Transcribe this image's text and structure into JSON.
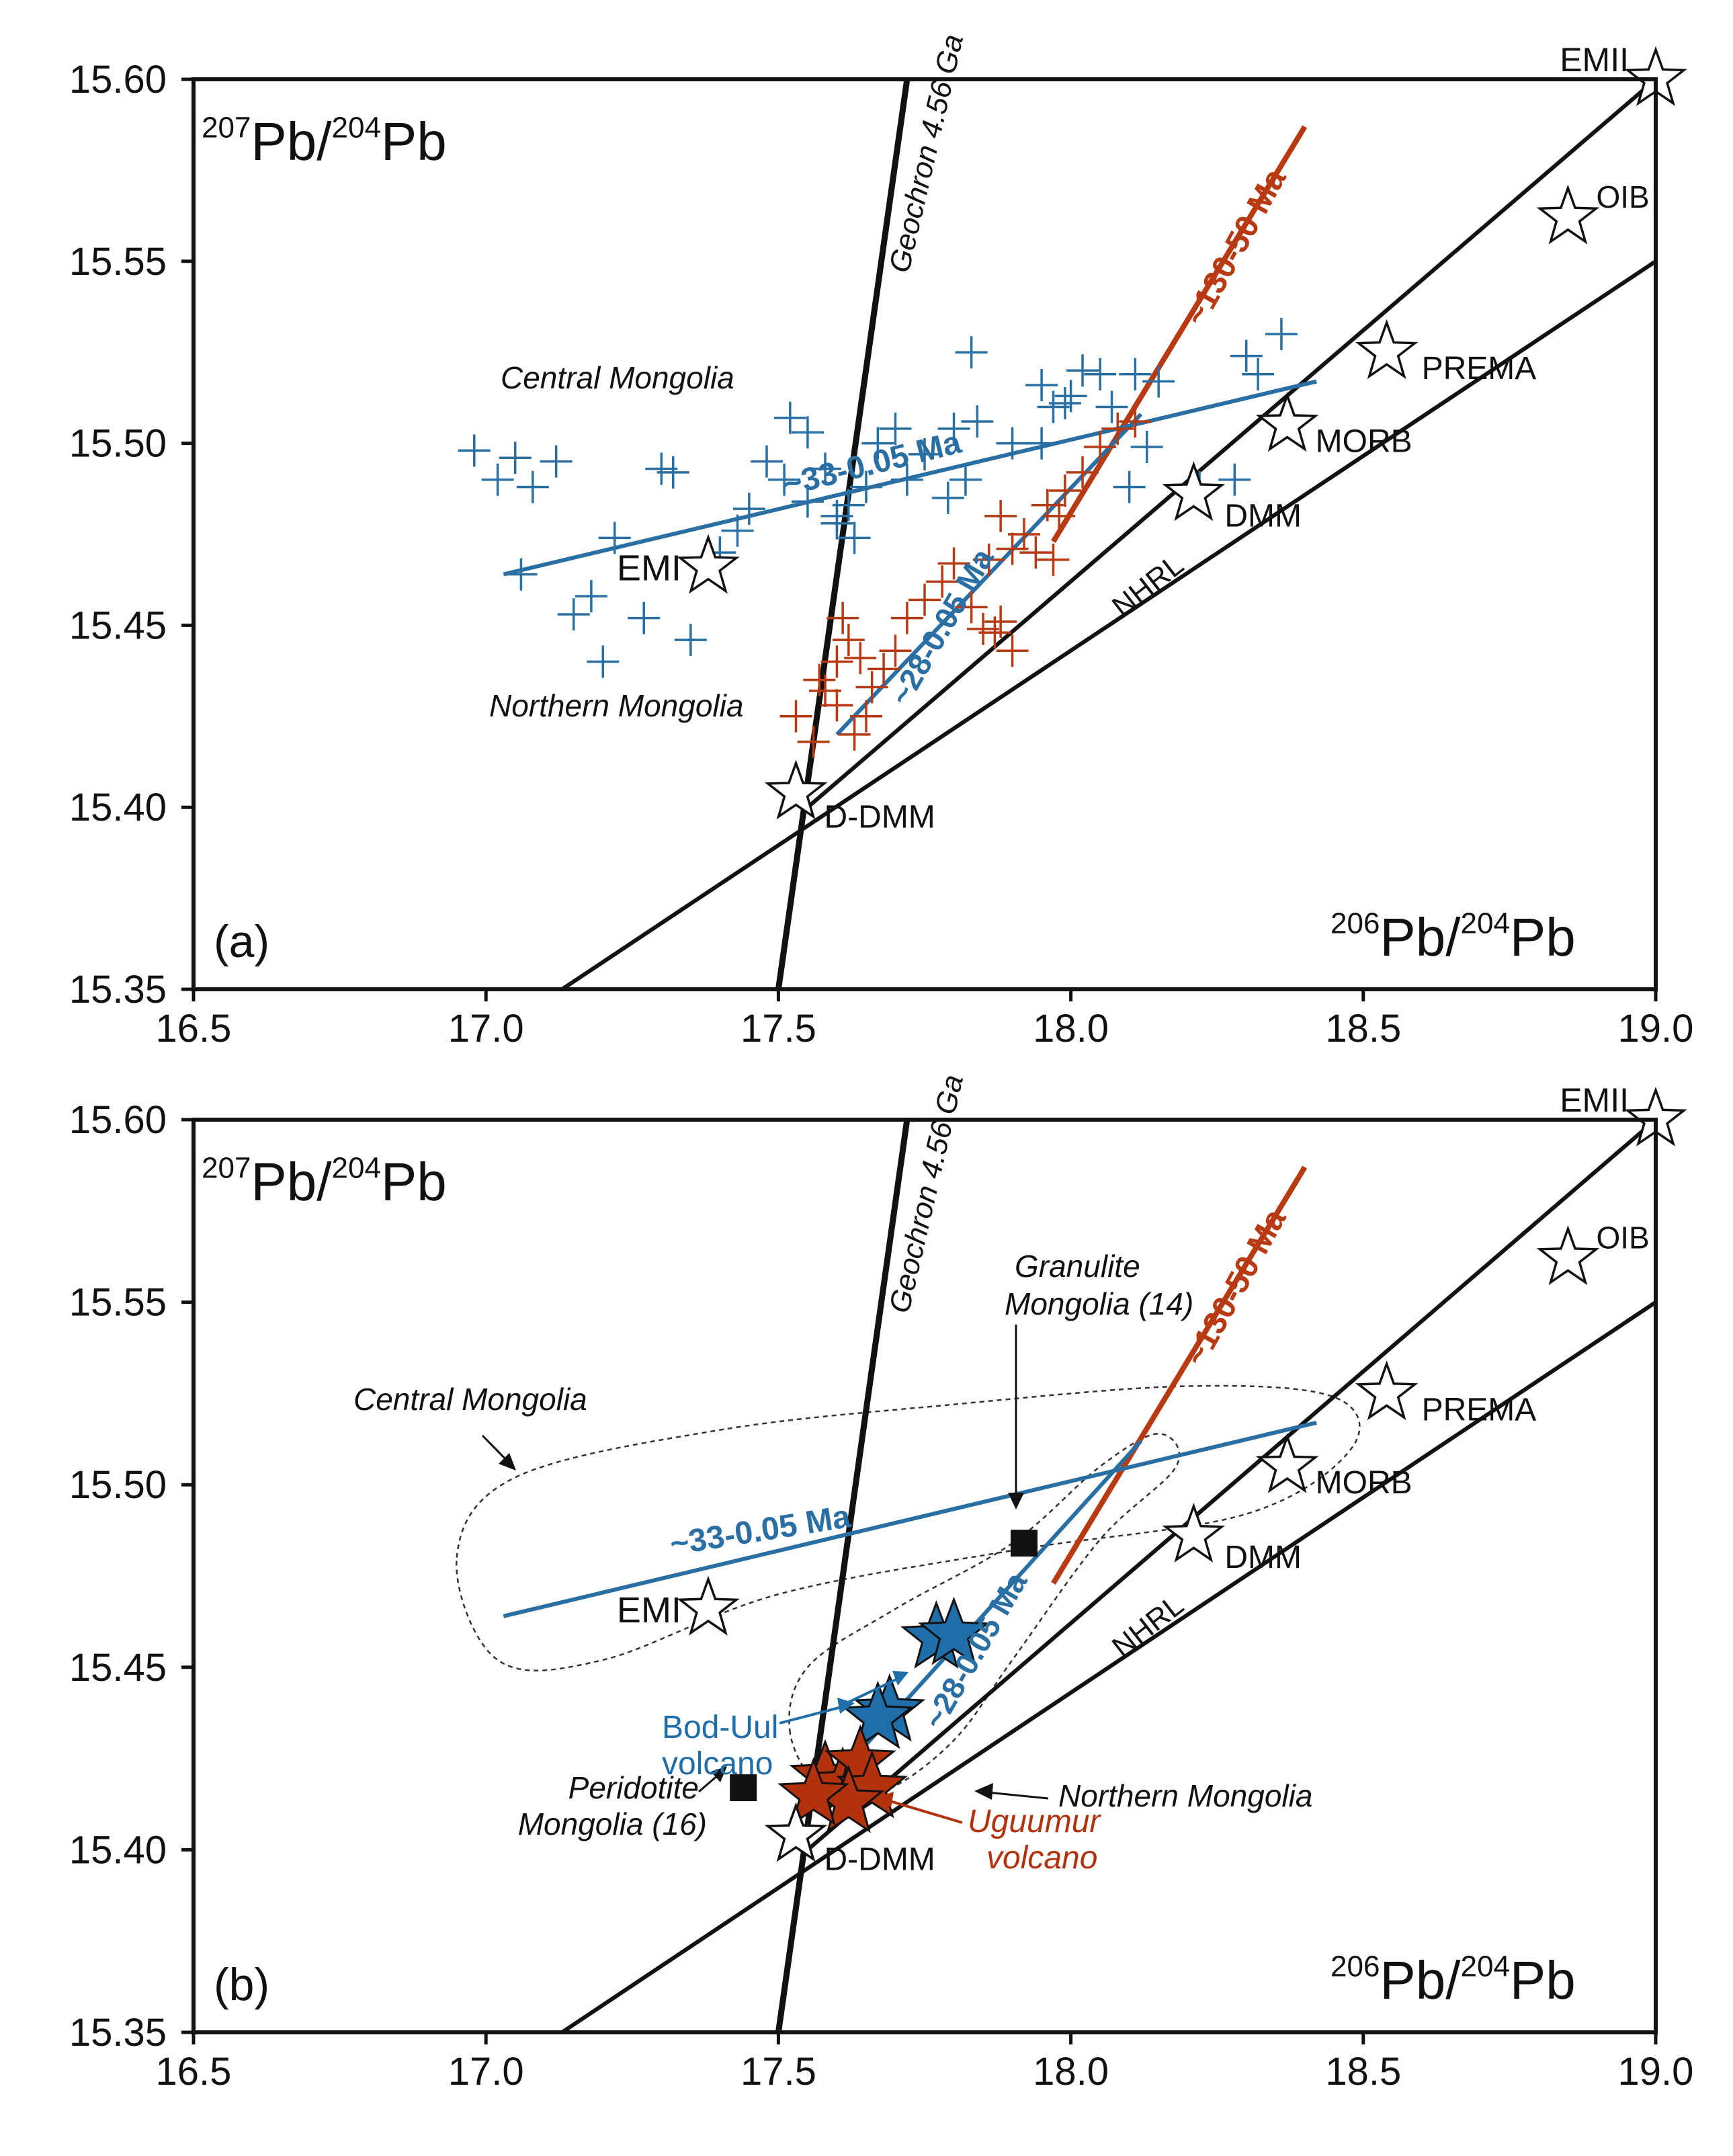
{
  "figure": {
    "x_ticks": [
      "16.5",
      "17.0",
      "17.5",
      "18.0",
      "18.5",
      "19.0"
    ],
    "y_ticks": [
      "15.35",
      "15.40",
      "15.45",
      "15.50",
      "15.55",
      "15.60"
    ]
  },
  "colors": {
    "central": "#2a6fa3",
    "northern": "#b73a12",
    "axis": "#111111",
    "sample_blue": "#1f6ea9",
    "sample_red": "#b3320e"
  },
  "chart_data": [
    {
      "type": "scatter",
      "panel_label": "(a)",
      "ylabel_parts": {
        "sup1": "207",
        "base1": "Pb/",
        "sup2": "204",
        "base2": "Pb"
      },
      "xlabel_parts": {
        "sup1": "206",
        "base1": "Pb/",
        "sup2": "204",
        "base2": "Pb"
      },
      "xlim": [
        16.5,
        19.0
      ],
      "ylim": [
        15.35,
        15.6
      ],
      "reference_lines": [
        {
          "name": "Geochron 4.56 Ga",
          "label": "Geochron 4.56 Ga",
          "from": [
            17.5,
            15.35
          ],
          "to": [
            17.72,
            15.6
          ],
          "color": "#111111"
        },
        {
          "name": "NHRL",
          "label": "NHRL",
          "from": [
            17.13,
            15.35
          ],
          "to": [
            19.0,
            15.55
          ],
          "color": "#111111"
        },
        {
          "name": "mantle array",
          "label": "",
          "from": [
            17.55,
            15.4
          ],
          "to": [
            19.0,
            15.6
          ],
          "color": "#111111"
        },
        {
          "name": "~130-50 Ma",
          "label": "~130-50 Ma",
          "from": [
            17.97,
            15.473
          ],
          "to": [
            18.4,
            15.587
          ],
          "color": "#b73a12"
        },
        {
          "name": "~33-0.05 Ma",
          "label": "~33-0.05 Ma",
          "from": [
            17.03,
            15.464
          ],
          "to": [
            18.42,
            15.517
          ],
          "color": "#2a6fa3"
        },
        {
          "name": "~28-0.05 Ma",
          "label": "~28-0.05 Ma",
          "from": [
            17.6,
            15.42
          ],
          "to": [
            18.12,
            15.508
          ],
          "color": "#2a6fa3"
        }
      ],
      "end_members": [
        {
          "name": "EMII",
          "x": 19.0,
          "y": 15.6
        },
        {
          "name": "OIB",
          "x": 18.85,
          "y": 15.562
        },
        {
          "name": "PREMA",
          "x": 18.54,
          "y": 15.525
        },
        {
          "name": "MORB",
          "x": 18.37,
          "y": 15.505
        },
        {
          "name": "DMM",
          "x": 18.21,
          "y": 15.486
        },
        {
          "name": "EMI",
          "x": 17.38,
          "y": 15.466
        },
        {
          "name": "D-DMM",
          "x": 17.53,
          "y": 15.404
        }
      ],
      "annotations": [
        "Central Mongolia",
        "Northern Mongolia"
      ],
      "series": [
        {
          "name": "Central Mongolia",
          "marker": "plus",
          "color": "#2a6fa3",
          "points": [
            [
              16.98,
              15.498
            ],
            [
              17.05,
              15.496
            ],
            [
              17.02,
              15.49
            ],
            [
              17.08,
              15.488
            ],
            [
              17.12,
              15.495
            ],
            [
              17.06,
              15.464
            ],
            [
              17.22,
              15.474
            ],
            [
              17.18,
              15.458
            ],
            [
              17.15,
              15.453
            ],
            [
              17.2,
              15.44
            ],
            [
              17.27,
              15.452
            ],
            [
              17.35,
              15.446
            ],
            [
              17.3,
              15.493
            ],
            [
              17.32,
              15.492
            ],
            [
              17.4,
              15.47
            ],
            [
              17.43,
              15.476
            ],
            [
              17.45,
              15.482
            ],
            [
              17.48,
              15.495
            ],
            [
              17.51,
              15.49
            ],
            [
              17.52,
              15.507
            ],
            [
              17.55,
              15.503
            ],
            [
              17.58,
              15.493
            ],
            [
              17.55,
              15.484
            ],
            [
              17.6,
              15.478
            ],
            [
              17.62,
              15.483
            ],
            [
              17.63,
              15.474
            ],
            [
              17.65,
              15.488
            ],
            [
              17.67,
              15.5
            ],
            [
              17.72,
              15.49
            ],
            [
              17.7,
              15.504
            ],
            [
              17.75,
              15.497
            ],
            [
              17.8,
              15.504
            ],
            [
              17.79,
              15.485
            ],
            [
              17.82,
              15.49
            ],
            [
              17.84,
              15.506
            ],
            [
              17.83,
              15.525
            ],
            [
              17.9,
              15.5
            ],
            [
              17.95,
              15.516
            ],
            [
              17.97,
              15.51
            ],
            [
              17.99,
              15.511
            ],
            [
              18.0,
              15.513
            ],
            [
              18.02,
              15.52
            ],
            [
              18.05,
              15.519
            ],
            [
              18.07,
              15.51
            ],
            [
              18.11,
              15.519
            ],
            [
              18.13,
              15.499
            ],
            [
              18.15,
              15.517
            ],
            [
              18.1,
              15.488
            ],
            [
              18.22,
              15.488
            ],
            [
              18.28,
              15.49
            ],
            [
              18.32,
              15.519
            ],
            [
              18.36,
              15.53
            ],
            [
              18.3,
              15.524
            ],
            [
              17.95,
              15.5
            ],
            [
              17.6,
              15.48
            ]
          ]
        },
        {
          "name": "Northern Mongolia",
          "marker": "plus",
          "color": "#b73a12",
          "points": [
            [
              17.53,
              15.425
            ],
            [
              17.56,
              15.418
            ],
            [
              17.58,
              15.432
            ],
            [
              17.6,
              15.428
            ],
            [
              17.62,
              15.446
            ],
            [
              17.61,
              15.452
            ],
            [
              17.64,
              15.441
            ],
            [
              17.66,
              15.433
            ],
            [
              17.63,
              15.42
            ],
            [
              17.65,
              15.425
            ],
            [
              17.68,
              15.438
            ],
            [
              17.7,
              15.443
            ],
            [
              17.72,
              15.452
            ],
            [
              17.75,
              15.457
            ],
            [
              17.78,
              15.462
            ],
            [
              17.8,
              15.467
            ],
            [
              17.83,
              15.455
            ],
            [
              17.85,
              15.449
            ],
            [
              17.87,
              15.448
            ],
            [
              17.88,
              15.451
            ],
            [
              17.9,
              15.443
            ],
            [
              17.86,
              15.468
            ],
            [
              17.88,
              15.48
            ],
            [
              17.9,
              15.471
            ],
            [
              17.92,
              15.475
            ],
            [
              17.94,
              15.47
            ],
            [
              17.96,
              15.483
            ],
            [
              17.98,
              15.48
            ],
            [
              17.97,
              15.468
            ],
            [
              17.99,
              15.487
            ],
            [
              18.02,
              15.492
            ],
            [
              18.05,
              15.499
            ],
            [
              18.08,
              15.504
            ],
            [
              18.11,
              15.506
            ],
            [
              17.6,
              15.44
            ],
            [
              17.57,
              15.435
            ]
          ]
        }
      ]
    },
    {
      "type": "scatter",
      "panel_label": "(b)",
      "ylabel_parts": {
        "sup1": "207",
        "base1": "Pb/",
        "sup2": "204",
        "base2": "Pb"
      },
      "xlabel_parts": {
        "sup1": "206",
        "base1": "Pb/",
        "sup2": "204",
        "base2": "Pb"
      },
      "xlim": [
        16.5,
        19.0
      ],
      "ylim": [
        15.35,
        15.6
      ],
      "reference_lines": [
        {
          "name": "Geochron 4.56 Ga",
          "label": "Geochron 4.56 Ga",
          "from": [
            17.5,
            15.35
          ],
          "to": [
            17.72,
            15.6
          ],
          "color": "#111111"
        },
        {
          "name": "NHRL",
          "label": "NHRL",
          "from": [
            17.13,
            15.35
          ],
          "to": [
            19.0,
            15.55
          ],
          "color": "#111111"
        },
        {
          "name": "mantle array",
          "label": "",
          "from": [
            17.55,
            15.4
          ],
          "to": [
            19.0,
            15.6
          ],
          "color": "#111111"
        },
        {
          "name": "~130-50 Ma",
          "label": "~130-50 Ma",
          "from": [
            17.97,
            15.473
          ],
          "to": [
            18.4,
            15.587
          ],
          "color": "#b73a12"
        },
        {
          "name": "~33-0.05 Ma",
          "label": "~33-0.05 Ma",
          "from": [
            17.03,
            15.464
          ],
          "to": [
            18.42,
            15.517
          ],
          "color": "#2a6fa3"
        },
        {
          "name": "~28-0.05 Ma",
          "label": "~28-0.05 Ma",
          "from": [
            17.6,
            15.42
          ],
          "to": [
            18.12,
            15.512
          ],
          "color": "#2a6fa3"
        }
      ],
      "end_members": [
        {
          "name": "EMII",
          "x": 19.0,
          "y": 15.6
        },
        {
          "name": "OIB",
          "x": 18.85,
          "y": 15.562
        },
        {
          "name": "PREMA",
          "x": 18.54,
          "y": 15.525
        },
        {
          "name": "MORB",
          "x": 18.37,
          "y": 15.505
        },
        {
          "name": "DMM",
          "x": 18.21,
          "y": 15.486
        },
        {
          "name": "EMI",
          "x": 17.38,
          "y": 15.466
        },
        {
          "name": "D-DMM",
          "x": 17.53,
          "y": 15.404
        }
      ],
      "annotations": [
        "Central Mongolia",
        "Northern Mongolia",
        "Granulite",
        "Mongolia (14)",
        "Peridotite",
        "Mongolia (16)"
      ],
      "fields": [
        {
          "name": "Central Mongolia",
          "outline": [
            [
              16.95,
              15.48
            ],
            [
              17.05,
              15.502
            ],
            [
              17.4,
              15.515
            ],
            [
              17.8,
              15.522
            ],
            [
              18.2,
              15.527
            ],
            [
              18.45,
              15.524
            ],
            [
              18.48,
              15.51
            ],
            [
              18.3,
              15.492
            ],
            [
              17.9,
              15.482
            ],
            [
              17.5,
              15.47
            ],
            [
              17.2,
              15.452
            ],
            [
              17.02,
              15.452
            ]
          ]
        },
        {
          "name": "Northern Mongolia",
          "outline": [
            [
              17.52,
              15.432
            ],
            [
              17.55,
              15.45
            ],
            [
              17.7,
              15.466
            ],
            [
              17.9,
              15.484
            ],
            [
              18.05,
              15.505
            ],
            [
              18.15,
              15.514
            ],
            [
              18.18,
              15.505
            ],
            [
              18.05,
              15.485
            ],
            [
              17.9,
              15.452
            ],
            [
              17.8,
              15.43
            ],
            [
              17.68,
              15.416
            ],
            [
              17.58,
              15.416
            ]
          ]
        }
      ],
      "samples": [
        {
          "name": "Granulite Mongolia (14)",
          "marker": "square",
          "x": 17.92,
          "y": 15.484,
          "color": "#111111"
        },
        {
          "name": "Peridotite Mongolia (16)",
          "marker": "square",
          "x": 17.44,
          "y": 15.417,
          "color": "#111111"
        }
      ],
      "volcanoes": [
        {
          "name": "Bod-Uul volcano",
          "label_lines": [
            "Bod-Uul",
            "volcano"
          ],
          "color": "#1f6ea9",
          "points": [
            [
              17.77,
              15.458
            ],
            [
              17.8,
              15.459
            ],
            [
              17.69,
              15.438
            ],
            [
              17.67,
              15.436
            ]
          ]
        },
        {
          "name": "Uguumur volcano",
          "label_lines": [
            "Uguumur",
            "volcano"
          ],
          "color": "#b3320e",
          "points": [
            [
              17.58,
              15.42
            ],
            [
              17.61,
              15.418
            ],
            [
              17.64,
              15.424
            ],
            [
              17.66,
              15.417
            ],
            [
              17.62,
              15.413
            ],
            [
              17.56,
              15.415
            ]
          ]
        }
      ]
    }
  ]
}
